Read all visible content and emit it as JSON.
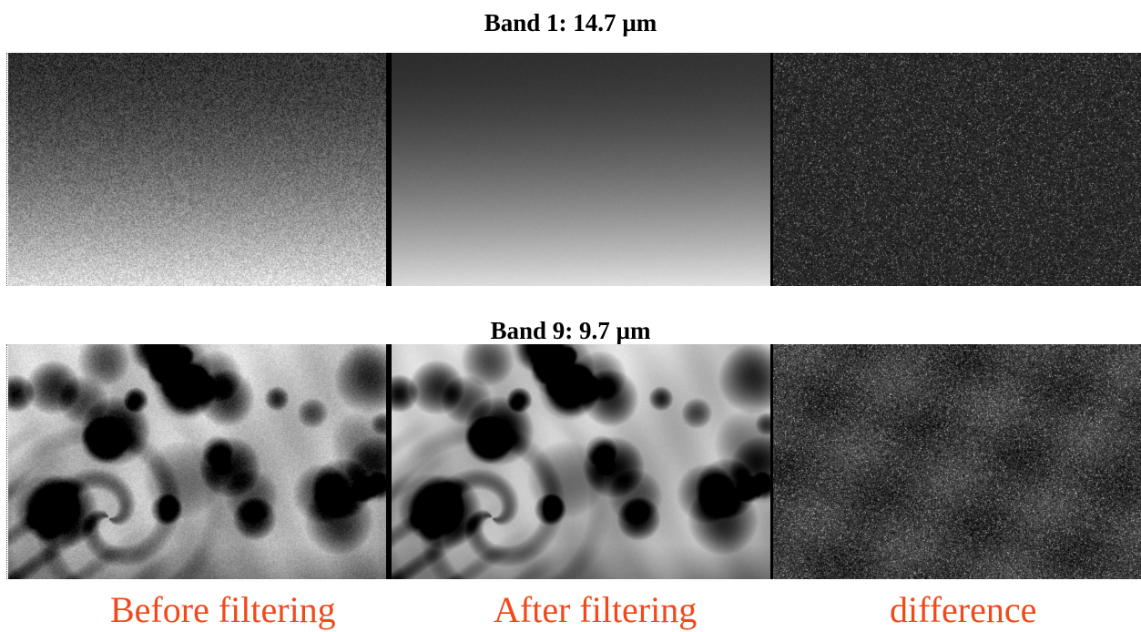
{
  "figure": {
    "bands": [
      {
        "title": "Band 1: 14.7 µm"
      },
      {
        "title": "Band 9: 9.7 µm"
      }
    ],
    "captions": {
      "before": "Before filtering",
      "after": "After filtering",
      "difference": "difference"
    },
    "colors": {
      "caption": "#f04a1c",
      "title": "#000000"
    }
  }
}
